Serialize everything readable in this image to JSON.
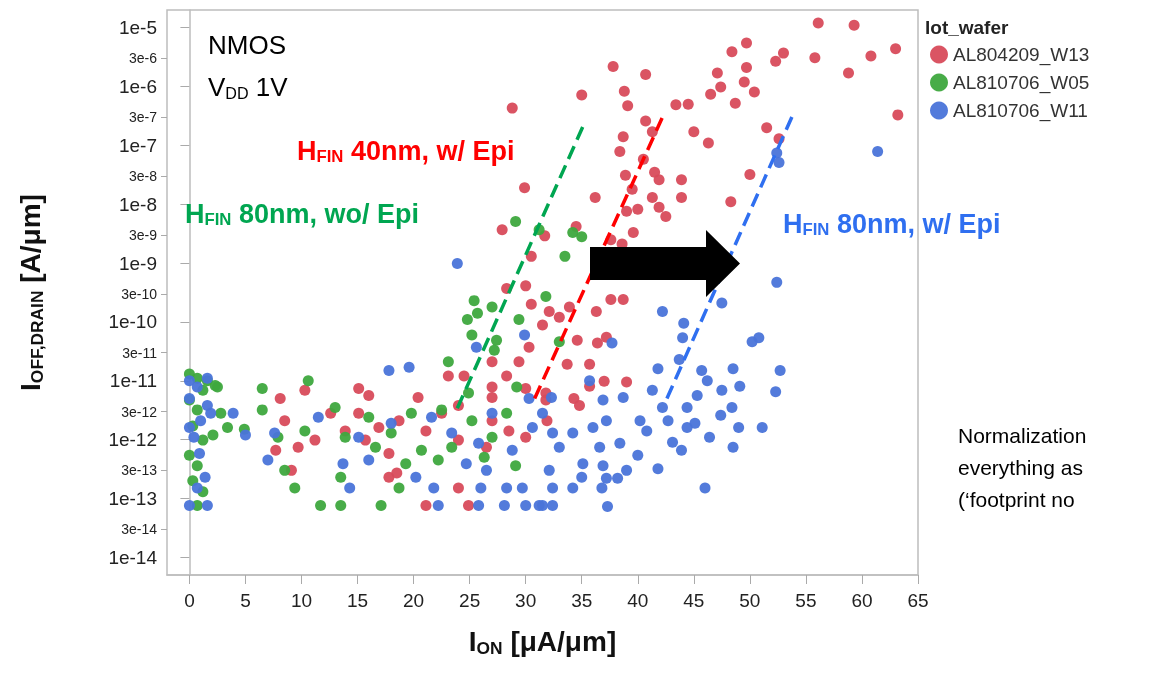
{
  "chart_data": {
    "type": "scatter",
    "xlabel": "I$_{ON}$ [μA/μm]",
    "ylabel": "I$_{OFF,DRAIN}$ [A/μm]",
    "legend_title": "lot_wafer",
    "legend": "top right",
    "marker": "circle",
    "log": "y",
    "xlim": [
      -2,
      65
    ],
    "xticks": [
      0,
      5,
      10,
      15,
      20,
      25,
      30,
      35,
      40,
      45,
      50,
      55,
      60,
      65
    ],
    "ylim": [
      5e-15,
      2e-05
    ],
    "yticks": [
      {
        "value": 1e-14,
        "label": "1e-14"
      },
      {
        "value": 3e-14,
        "label": "3e-14"
      },
      {
        "value": 1e-13,
        "label": "1e-13"
      },
      {
        "value": 3e-13,
        "label": "3e-13"
      },
      {
        "value": 1e-12,
        "label": "1e-12"
      },
      {
        "value": 3e-12,
        "label": "3e-12"
      },
      {
        "value": 1e-11,
        "label": "1e-11"
      },
      {
        "value": 3e-11,
        "label": "3e-11"
      },
      {
        "value": 1e-10,
        "label": "1e-10"
      },
      {
        "value": 3e-10,
        "label": "3e-10"
      },
      {
        "value": 1e-09,
        "label": "1e-9"
      },
      {
        "value": 3e-09,
        "label": "3e-9"
      },
      {
        "value": 1e-08,
        "label": "1e-8"
      },
      {
        "value": 3e-08,
        "label": "3e-8"
      },
      {
        "value": 1e-07,
        "label": "1e-7"
      },
      {
        "value": 3e-07,
        "label": "3e-7"
      },
      {
        "value": 1e-06,
        "label": "1e-6"
      },
      {
        "value": 3e-06,
        "label": "3e-6"
      },
      {
        "value": 1e-05,
        "label": "1e-5"
      }
    ],
    "annotations": [
      "NMOS",
      "V$_{DD}$ 1V",
      "Normalization\neverything as\n(‘footprint no"
    ],
    "series": [
      {
        "name": "AL804209_W13",
        "color": "#d84b5b",
        "x": [
          56.1,
          59.3,
          63.0,
          60.8,
          55.8,
          58.8,
          63.2,
          53.0,
          52.3,
          49.7,
          48.4,
          49.7,
          49.5,
          50.4,
          48.7,
          47.1,
          47.4,
          46.5,
          44.5,
          43.4,
          45.0,
          46.3,
          51.5,
          52.6,
          50.0,
          48.3,
          43.9,
          43.9,
          41.5,
          41.9,
          41.3,
          41.9,
          42.5,
          39.6,
          39.0,
          40.0,
          39.5,
          38.9,
          40.5,
          38.4,
          38.7,
          40.7,
          41.3,
          39.1,
          38.8,
          40.7,
          37.8,
          35.0,
          36.2,
          34.5,
          31.7,
          37.6,
          38.6,
          28.8,
          29.9,
          27.9,
          30.5,
          28.3,
          30.0,
          38.7,
          37.6,
          36.3,
          33.9,
          32.1,
          33.0,
          34.6,
          36.4,
          37.2,
          33.7,
          35.7,
          37.0,
          39.0,
          35.7,
          34.3,
          34.8,
          31.8,
          31.9,
          30.5,
          31.5,
          30.3,
          29.4,
          27.0,
          28.3,
          27.0,
          23.1,
          24.5,
          20.4,
          30.0,
          31.8,
          10.3,
          8.1,
          15.1,
          16.0,
          27.0,
          24.0,
          24.9,
          21.1,
          17.8,
          9.1,
          18.5,
          7.7,
          9.7,
          11.2,
          12.6,
          13.9,
          15.7,
          17.8,
          18.7,
          21.1,
          22.5,
          24.0,
          26.5,
          27.0,
          28.5,
          30.0,
          24.0,
          15.1,
          16.9,
          8.5
        ],
        "values": [
          1.2e-05,
          1.1e-05,
          4.4e-06,
          3.3e-06,
          3.1e-06,
          1.7e-06,
          3.3e-07,
          3.7e-06,
          2.7e-06,
          5.5e-06,
          3.9e-06,
          2.1e-06,
          1.2e-06,
          8.1e-07,
          5.2e-07,
          1.7e-06,
          9.8e-07,
          7.4e-07,
          5e-07,
          4.9e-07,
          1.7e-07,
          1.1e-07,
          2e-07,
          1.3e-07,
          3.2e-08,
          1.1e-08,
          2.6e-08,
          1.3e-08,
          3.5e-08,
          2.6e-08,
          1.3e-08,
          8.9e-09,
          6.2e-09,
          3.3e-09,
          7.6e-09,
          8.2e-09,
          1.8e-08,
          3.1e-08,
          5.8e-08,
          7.9e-08,
          1.4e-07,
          2.6e-07,
          1.7e-07,
          4.7e-07,
          8.3e-07,
          1.6e-06,
          2.2e-06,
          7.2e-07,
          1.3e-08,
          4.2e-09,
          2.9e-09,
          2.5e-09,
          2.1e-09,
          4.3e-07,
          1.9e-08,
          3.7e-09,
          1.3e-09,
          3.7e-10,
          4.1e-10,
          2.4e-10,
          2.4e-10,
          1.5e-10,
          1.8e-10,
          1.5e-10,
          1.2e-10,
          4.9e-11,
          4.4e-11,
          5.5e-11,
          1.9e-11,
          1.9e-11,
          9.8e-12,
          9.5e-12,
          8.1e-12,
          5e-12,
          3.8e-12,
          6.2e-12,
          2.1e-12,
          2e-10,
          8.9e-11,
          3.7e-11,
          2.1e-11,
          2.1e-11,
          1.2e-11,
          7.8e-12,
          1.2e-11,
          1.2e-11,
          5.2e-12,
          7.4e-12,
          4.7e-12,
          6.9e-12,
          5e-12,
          7.4e-12,
          5.6e-12,
          5.2e-12,
          1.5e-13,
          7.6e-14,
          7.6e-14,
          2.3e-13,
          3e-13,
          2.7e-13,
          6.6e-13,
          7.4e-13,
          9.8e-13,
          2.8e-12,
          1.4e-12,
          9.8e-13,
          5.8e-13,
          2.1e-12,
          1.4e-12,
          2.8e-12,
          9.8e-13,
          7.4e-13,
          2.1e-12,
          1.4e-12,
          1.1e-12,
          3.8e-12,
          2.8e-12,
          1.6e-12,
          2.1e-12
        ]
      },
      {
        "name": "AL810706_W05",
        "color": "#3ea83e",
        "x": [
          29.1,
          31.2,
          34.2,
          35.0,
          33.5,
          31.8,
          33.0,
          25.4,
          27.0,
          24.8,
          25.7,
          29.4,
          25.2,
          23.1,
          27.4,
          27.2,
          24.9,
          29.2,
          29.1,
          26.3,
          19.3,
          18.7,
          13.5,
          17.1,
          13.5,
          11.7,
          9.4,
          8.5,
          6.5,
          6.5,
          10.6,
          4.9,
          3.4,
          2.8,
          2.1,
          2.5,
          7.9,
          10.3,
          13.0,
          13.9,
          16.0,
          18.0,
          19.8,
          20.7,
          22.5,
          23.4,
          25.2,
          27.0,
          28.3,
          16.6,
          22.2,
          0,
          0.7,
          1.2,
          0,
          0.7,
          0.3,
          1.2,
          0,
          0.7,
          0.3,
          1.2,
          0.7,
          1.6,
          2.3
        ],
        "values": [
          5.1e-09,
          3.7e-09,
          3.3e-09,
          2.8e-09,
          1.3e-09,
          2.7e-10,
          4.6e-11,
          2.3e-10,
          1.8e-10,
          1.1e-10,
          1.4e-10,
          1.1e-10,
          6e-11,
          2.1e-11,
          4.9e-11,
          3.3e-11,
          6.2e-12,
          7.8e-12,
          3.6e-13,
          5e-13,
          3.9e-13,
          1.5e-13,
          2.3e-13,
          7.6e-14,
          7.6e-14,
          7.6e-14,
          1.5e-13,
          3e-13,
          3.2e-12,
          7.4e-12,
          1e-11,
          1.5e-12,
          1.6e-12,
          2.8e-12,
          1.2e-12,
          7.8e-12,
          1.1e-12,
          1.4e-12,
          3.5e-12,
          1.1e-12,
          2.4e-12,
          1.3e-12,
          2.8e-12,
          6.6e-13,
          3.2e-12,
          7.4e-13,
          2.1e-12,
          1.1e-12,
          2.8e-12,
          7.4e-13,
          4.5e-13,
          1.3e-11,
          1.1e-11,
          6.9e-12,
          4.7e-12,
          3.2e-12,
          1.7e-12,
          9.8e-13,
          5.4e-13,
          3.6e-13,
          2e-13,
          1.3e-13,
          7.6e-14,
          1e-11,
          8.3e-12
        ]
      },
      {
        "name": "AL810706_W11",
        "color": "#4a74d9",
        "x": [
          61.4,
          23.9,
          52.4,
          52.6,
          52.4,
          47.5,
          42.2,
          44.1,
          44.0,
          37.7,
          50.2,
          50.8,
          52.7,
          48.5,
          52.3,
          43.7,
          41.8,
          45.7,
          46.2,
          49.1,
          47.5,
          45.3,
          41.3,
          42.2,
          44.4,
          48.4,
          47.4,
          49.0,
          51.1,
          42.7,
          45.1,
          44.4,
          46.4,
          43.1,
          43.9,
          48.5,
          41.8,
          46.0,
          37.3,
          32.3,
          35.7,
          38.7,
          36.9,
          37.2,
          40.2,
          40.8,
          36.0,
          34.2,
          32.4,
          38.4,
          36.6,
          33.0,
          40.0,
          35.1,
          36.9,
          32.1,
          39.0,
          35.0,
          37.2,
          38.2,
          34.2,
          32.4,
          36.8,
          32.4,
          31.2,
          29.9,
          25.6,
          17.8,
          19.6,
          30.3,
          3.9,
          5.0,
          7.0,
          7.6,
          13.7,
          14.3,
          20.2,
          21.8,
          22.2,
          26.0,
          25.8,
          28.3,
          29.7,
          28.1,
          30.0,
          31.5,
          24.7,
          26.5,
          28.8,
          25.8,
          16.0,
          15.1,
          11.5,
          18.0,
          21.6,
          23.4,
          27.0,
          30.6,
          31.5,
          0,
          1.6,
          1.6,
          1.9,
          0.7,
          1.0,
          0.4,
          0.9,
          1.4,
          0.7,
          1.6,
          0,
          0,
          0
        ],
        "values": [
          7.9e-08,
          9.8e-10,
          7.4e-08,
          5.1e-08,
          4.7e-10,
          2.1e-10,
          1.5e-10,
          9.5e-11,
          5.4e-11,
          4.4e-11,
          4.6e-11,
          5.4e-11,
          1.5e-11,
          1.6e-11,
          6.5e-12,
          2.3e-11,
          1.6e-11,
          1.5e-11,
          1e-11,
          8.1e-12,
          6.9e-12,
          5.6e-12,
          6.9e-12,
          3.5e-12,
          3.5e-12,
          3.5e-12,
          2.6e-12,
          1.6e-12,
          1.6e-12,
          2.1e-12,
          1.9e-12,
          1.6e-12,
          1.1e-12,
          9e-13,
          6.6e-13,
          7.4e-13,
          3.2e-13,
          1.5e-13,
          7.3e-14,
          5.2e-12,
          1e-11,
          5.2e-12,
          4.7e-12,
          2.1e-12,
          2.1e-12,
          1.4e-12,
          1.6e-12,
          1.3e-12,
          1.3e-12,
          8.7e-13,
          7.4e-13,
          7.4e-13,
          5.4e-13,
          3.9e-13,
          3.6e-13,
          3e-13,
          3e-13,
          2.3e-13,
          2.2e-13,
          2.2e-13,
          1.5e-13,
          1.5e-13,
          1.5e-13,
          7.6e-14,
          7.6e-14,
          6e-11,
          3.7e-11,
          1.5e-11,
          1.7e-11,
          5e-12,
          2.8e-12,
          1.2e-12,
          4.5e-13,
          1.3e-12,
          3.9e-13,
          1.5e-13,
          2.3e-13,
          1.5e-13,
          7.6e-14,
          1.5e-13,
          7.6e-14,
          1.5e-13,
          1.5e-13,
          7.6e-14,
          7.6e-14,
          7.6e-14,
          3.9e-13,
          3e-13,
          6.6e-13,
          8.7e-13,
          4.5e-13,
          1.1e-12,
          2.4e-12,
          1.9e-12,
          2.4e-12,
          1.3e-12,
          2.8e-12,
          1.6e-12,
          2.8e-12,
          1e-11,
          1.1e-11,
          3.8e-12,
          2.8e-12,
          7.8e-12,
          2.1e-12,
          1.1e-12,
          5.8e-13,
          2.3e-13,
          1.5e-13,
          7.6e-14,
          7.6e-14,
          1.6e-12,
          5e-12
        ]
      },
      {
        "type": "line",
        "name": "H$_{FIN}$ 40nm, w/ Epi",
        "color": "#ff0000",
        "line_style": "dashed",
        "marker": "none",
        "x": [
          30.8,
          42.2
        ],
        "values": [
          5e-12,
          3e-07
        ]
      },
      {
        "type": "line",
        "name": "H$_{FIN}$ 80nm, wo/ Epi",
        "color": "#00a651",
        "line_style": "dashed",
        "marker": "none",
        "x": [
          23.9,
          35.2
        ],
        "values": [
          3.4e-12,
          2.3e-07
        ]
      },
      {
        "type": "line",
        "name": "H$_{FIN}$ 80nm, w/ Epi",
        "color": "#2f6ff0",
        "line_style": "dashed",
        "marker": "none",
        "x": [
          42.6,
          53.8
        ],
        "values": [
          5e-12,
          3.2e-07
        ]
      }
    ]
  }
}
